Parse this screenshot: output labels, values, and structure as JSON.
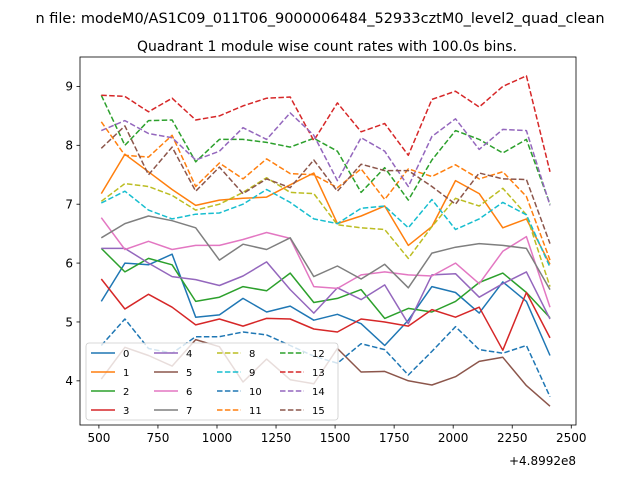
{
  "chart_data": {
    "type": "line",
    "suptitle": "n file: modeM0/AS1C09_011T06_9000006484_52933cztM0_level2_quad_clean",
    "title": "Quadrant 1 module wise count rates with 100.0s bins.",
    "xlabel": "",
    "ylabel": "",
    "x_offset_label": "+4.8992e8",
    "xlim": [
      420,
      2520
    ],
    "ylim": [
      3.25,
      9.5
    ],
    "xticks": [
      500,
      750,
      1000,
      1250,
      1500,
      1750,
      2000,
      2250,
      2500
    ],
    "yticks": [
      4,
      5,
      6,
      7,
      8,
      9
    ],
    "x": [
      510,
      610,
      710,
      810,
      910,
      1010,
      1110,
      1210,
      1310,
      1410,
      1510,
      1610,
      1710,
      1810,
      1910,
      2010,
      2110,
      2210,
      2310,
      2410
    ],
    "series": [
      {
        "name": "0",
        "color": "#1f77b4",
        "dash": "solid",
        "values": [
          5.35,
          6.0,
          5.97,
          6.15,
          5.08,
          5.12,
          5.4,
          5.17,
          5.27,
          5.03,
          5.13,
          4.97,
          4.6,
          5.03,
          5.6,
          5.5,
          5.15,
          5.68,
          5.35,
          4.43
        ]
      },
      {
        "name": "1",
        "color": "#ff7f0e",
        "dash": "solid",
        "values": [
          7.18,
          7.85,
          7.55,
          7.25,
          6.98,
          7.07,
          7.1,
          7.12,
          7.33,
          7.53,
          6.67,
          6.8,
          6.97,
          6.3,
          6.62,
          7.4,
          7.18,
          6.6,
          6.75,
          5.98
        ]
      },
      {
        "name": "2",
        "color": "#2ca02c",
        "dash": "solid",
        "values": [
          6.25,
          5.85,
          6.08,
          5.97,
          5.35,
          5.42,
          5.6,
          5.53,
          5.83,
          5.33,
          5.4,
          5.55,
          5.06,
          5.23,
          5.17,
          5.35,
          5.67,
          5.83,
          5.5,
          5.07
        ]
      },
      {
        "name": "3",
        "color": "#d62728",
        "dash": "solid",
        "values": [
          5.73,
          5.22,
          5.47,
          5.25,
          4.95,
          5.05,
          4.93,
          5.06,
          5.05,
          4.88,
          4.83,
          5.05,
          5.0,
          4.93,
          5.21,
          5.08,
          5.25,
          4.52,
          5.5,
          4.73
        ]
      },
      {
        "name": "4",
        "color": "#9467bd",
        "dash": "solid",
        "values": [
          6.25,
          6.25,
          6.0,
          5.77,
          5.72,
          5.62,
          5.78,
          6.02,
          5.55,
          5.15,
          5.58,
          5.38,
          5.63,
          4.97,
          5.8,
          5.82,
          5.42,
          5.65,
          5.85,
          5.05
        ]
      },
      {
        "name": "5",
        "color": "#8c564b",
        "dash": "solid",
        "values": [
          4.03,
          4.57,
          4.43,
          4.25,
          4.7,
          4.58,
          3.98,
          4.37,
          4.02,
          3.95,
          4.55,
          4.15,
          4.16,
          4.0,
          3.93,
          4.07,
          4.33,
          4.4,
          3.92,
          3.57
        ]
      },
      {
        "name": "6",
        "color": "#e377c2",
        "dash": "solid",
        "values": [
          6.77,
          6.23,
          6.37,
          6.23,
          6.3,
          6.3,
          6.4,
          6.52,
          6.42,
          5.6,
          5.57,
          5.8,
          5.85,
          5.8,
          5.78,
          6.0,
          5.65,
          6.2,
          6.45,
          5.25
        ]
      },
      {
        "name": "7",
        "color": "#7f7f7f",
        "dash": "solid",
        "values": [
          6.43,
          6.67,
          6.8,
          6.72,
          6.6,
          6.05,
          6.32,
          6.23,
          6.43,
          5.77,
          5.95,
          5.73,
          5.98,
          5.58,
          6.17,
          6.27,
          6.33,
          6.3,
          6.25,
          5.55
        ]
      },
      {
        "name": "8",
        "color": "#bcbd22",
        "dash": "dashed",
        "values": [
          7.05,
          7.35,
          7.3,
          7.15,
          6.9,
          7.0,
          7.2,
          7.45,
          7.2,
          7.18,
          6.65,
          6.6,
          6.57,
          6.08,
          6.62,
          7.1,
          6.97,
          7.27,
          6.82,
          5.6
        ]
      },
      {
        "name": "9",
        "color": "#17becf",
        "dash": "dashed",
        "values": [
          7.02,
          7.22,
          6.9,
          6.75,
          6.83,
          6.85,
          7.0,
          7.25,
          7.03,
          6.75,
          6.67,
          6.93,
          6.97,
          6.6,
          7.08,
          6.57,
          6.75,
          7.03,
          6.82,
          5.93
        ]
      },
      {
        "name": "10",
        "color": "#1f77b4",
        "dash": "dashed",
        "values": [
          4.6,
          5.05,
          4.55,
          4.47,
          4.75,
          4.75,
          4.83,
          4.78,
          4.6,
          4.42,
          4.3,
          4.63,
          4.53,
          4.1,
          4.5,
          4.92,
          4.53,
          4.47,
          4.6,
          3.73
        ]
      },
      {
        "name": "11",
        "color": "#ff7f0e",
        "dash": "dashed",
        "values": [
          8.4,
          7.83,
          7.8,
          8.17,
          7.3,
          7.7,
          7.43,
          7.77,
          7.52,
          7.5,
          7.28,
          7.6,
          7.08,
          7.6,
          7.47,
          7.67,
          7.43,
          7.55,
          7.13,
          6.05
        ]
      },
      {
        "name": "12",
        "color": "#2ca02c",
        "dash": "dashed",
        "values": [
          8.85,
          8.0,
          8.42,
          8.43,
          7.72,
          8.1,
          8.1,
          8.05,
          7.97,
          8.12,
          7.9,
          7.2,
          7.62,
          7.07,
          7.75,
          8.25,
          8.1,
          7.87,
          8.1,
          7.0
        ]
      },
      {
        "name": "13",
        "color": "#d62728",
        "dash": "dashed",
        "values": [
          8.85,
          8.83,
          8.57,
          8.8,
          8.43,
          8.5,
          8.67,
          8.8,
          8.82,
          8.08,
          8.72,
          8.23,
          8.37,
          7.83,
          8.78,
          8.92,
          8.65,
          9.0,
          9.18,
          7.55
        ]
      },
      {
        "name": "14",
        "color": "#9467bd",
        "dash": "dashed",
        "values": [
          8.25,
          8.42,
          8.2,
          8.13,
          7.75,
          7.9,
          8.3,
          8.1,
          8.55,
          8.17,
          7.4,
          8.13,
          7.9,
          7.3,
          8.15,
          8.45,
          7.93,
          8.27,
          8.25,
          6.98
        ]
      },
      {
        "name": "15",
        "color": "#8c564b",
        "dash": "dashed",
        "values": [
          7.95,
          8.33,
          7.5,
          7.97,
          7.22,
          7.63,
          7.18,
          7.43,
          7.28,
          7.75,
          7.22,
          7.68,
          7.57,
          7.57,
          7.3,
          7.0,
          7.53,
          7.43,
          7.42,
          6.33
        ]
      }
    ]
  }
}
